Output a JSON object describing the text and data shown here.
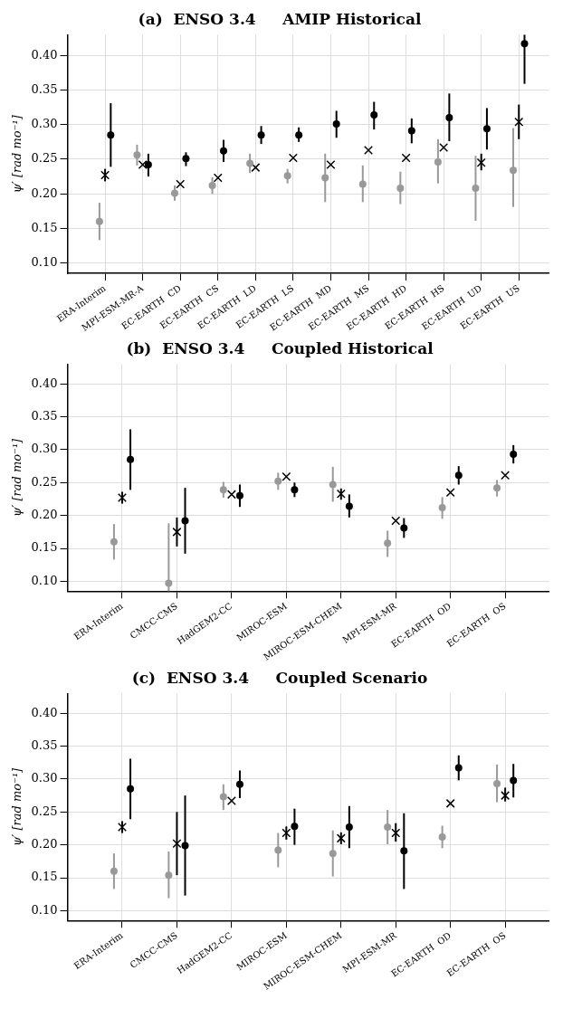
{
  "chart_data": [
    {
      "type": "scatter",
      "title": "(a)  ENSO 3.4     AMIP Historical",
      "ylabel": "ψ′ [rad mo⁻¹]",
      "categories": [
        "ERA-Interim",
        "MPI-ESM-MR-A",
        "EC-EARTH  CD",
        "EC-EARTH  CS",
        "EC-EARTH  LD",
        "EC-EARTH  LS",
        "EC-EARTH  MD",
        "EC-EARTH  MS",
        "EC-EARTH  HD",
        "EC-EARTH  HS",
        "EC-EARTH  UD",
        "EC-EARTH  US"
      ],
      "ylim": [
        0.085,
        0.43
      ],
      "yticks": [
        {
          "value": 0.1,
          "label": "0.10"
        },
        0.15,
        {
          "value": 0.2,
          "label": "0.20"
        },
        0.25,
        {
          "value": 0.3,
          "label": "0.30"
        },
        0.35,
        {
          "value": 0.4,
          "label": "0.40"
        }
      ],
      "grid": true,
      "legend": false,
      "series": [
        {
          "color": "#999999",
          "marker": "circle",
          "values": [
            0.16,
            0.256,
            0.201,
            0.212,
            0.244,
            0.226,
            0.223,
            0.214,
            0.208,
            0.246,
            0.208,
            0.234
          ],
          "errors": [
            [
              0.133,
              0.187
            ],
            [
              0.241,
              0.271
            ],
            [
              0.19,
              0.212
            ],
            [
              0.2,
              0.224
            ],
            [
              0.23,
              0.258
            ],
            [
              0.215,
              0.236
            ],
            [
              0.188,
              0.258
            ],
            [
              0.188,
              0.241
            ],
            [
              0.185,
              0.232
            ],
            [
              0.215,
              0.279
            ],
            [
              0.161,
              0.255
            ],
            [
              0.181,
              0.295
            ]
          ]
        },
        {
          "color": "#000000",
          "marker": "cross",
          "values": [
            0.227,
            0.242,
            0.214,
            0.223,
            0.238,
            0.252,
            0.242,
            0.263,
            0.252,
            0.267,
            0.245,
            0.304
          ],
          "errors": [
            [
              0.218,
              0.236
            ],
            null,
            null,
            null,
            null,
            null,
            null,
            null,
            null,
            null,
            [
              0.234,
              0.258
            ],
            [
              0.279,
              0.329
            ]
          ]
        },
        {
          "color": "#000000",
          "marker": "circle",
          "values": [
            0.285,
            0.242,
            0.251,
            0.262,
            0.285,
            0.285,
            0.301,
            0.314,
            0.291,
            0.31,
            0.294,
            0.417
          ],
          "errors": [
            [
              0.239,
              0.331
            ],
            [
              0.225,
              0.258
            ],
            [
              0.24,
              0.26
            ],
            [
              0.246,
              0.278
            ],
            [
              0.272,
              0.298
            ],
            [
              0.275,
              0.296
            ],
            [
              0.281,
              0.32
            ],
            [
              0.293,
              0.333
            ],
            [
              0.273,
              0.309
            ],
            [
              0.276,
              0.345
            ],
            [
              0.264,
              0.324
            ],
            [
              0.359,
              0.43
            ]
          ]
        }
      ]
    },
    {
      "type": "scatter",
      "title": "(b)  ENSO 3.4     Coupled Historical",
      "ylabel": "ψ′ [rad mo⁻¹]",
      "categories": [
        "ERA-Interim",
        "CMCC-CMS",
        "HadGEM2-CC",
        "MIROC-ESM",
        "MIROC-ESM-CHEM",
        "MPI-ESM-MR",
        "EC-EARTH  OD",
        "EC-EARTH  OS"
      ],
      "ylim": [
        0.085,
        0.43
      ],
      "yticks": [
        {
          "value": 0.1,
          "label": "0.10"
        },
        0.15,
        {
          "value": 0.2,
          "label": "0.20"
        },
        0.25,
        {
          "value": 0.3,
          "label": "0.30"
        },
        0.35,
        {
          "value": 0.4,
          "label": "0.40"
        }
      ],
      "grid": true,
      "legend": false,
      "series": [
        {
          "color": "#999999",
          "marker": "circle",
          "values": [
            0.16,
            0.097,
            0.239,
            0.252,
            0.247,
            0.158,
            0.212,
            0.242
          ],
          "errors": [
            [
              0.133,
              0.187
            ],
            [
              0.085,
              0.188
            ],
            [
              0.227,
              0.251
            ],
            [
              0.239,
              0.265
            ],
            [
              0.221,
              0.274
            ],
            [
              0.137,
              0.177
            ],
            [
              0.195,
              0.228
            ],
            [
              0.229,
              0.254
            ]
          ]
        },
        {
          "color": "#000000",
          "marker": "cross",
          "values": [
            0.227,
            0.175,
            0.232,
            0.259,
            0.233,
            0.192,
            0.235,
            0.261
          ],
          "errors": [
            [
              0.218,
              0.236
            ],
            [
              0.153,
              0.197
            ],
            null,
            null,
            [
              0.224,
              0.241
            ],
            null,
            null,
            null
          ]
        },
        {
          "color": "#000000",
          "marker": "circle",
          "values": [
            0.285,
            0.192,
            0.23,
            0.239,
            0.214,
            0.181,
            0.261,
            0.293
          ],
          "errors": [
            [
              0.239,
              0.331
            ],
            [
              0.142,
              0.242
            ],
            [
              0.213,
              0.247
            ],
            [
              0.228,
              0.25
            ],
            [
              0.197,
              0.232
            ],
            [
              0.166,
              0.196
            ],
            [
              0.247,
              0.275
            ],
            [
              0.279,
              0.307
            ]
          ]
        }
      ]
    },
    {
      "type": "scatter",
      "title": "(c)  ENSO 3.4     Coupled Scenario",
      "ylabel": "ψ′ [rad mo⁻¹]",
      "categories": [
        "ERA-Interim",
        "CMCC-CMS",
        "HadGEM2-CC",
        "MIROC-ESM",
        "MIROC-ESM-CHEM",
        "MPI-ESM-MR",
        "EC-EARTH  OD",
        "EC-EARTH  OS"
      ],
      "ylim": [
        0.085,
        0.43
      ],
      "yticks": [
        {
          "value": 0.1,
          "label": "0.10"
        },
        0.15,
        {
          "value": 0.2,
          "label": "0.20"
        },
        0.25,
        {
          "value": 0.3,
          "label": "0.30"
        },
        0.35,
        {
          "value": 0.4,
          "label": "0.40"
        }
      ],
      "grid": true,
      "legend": false,
      "series": [
        {
          "color": "#999999",
          "marker": "circle",
          "values": [
            0.16,
            0.154,
            0.273,
            0.192,
            0.187,
            0.227,
            0.212,
            0.293
          ],
          "errors": [
            [
              0.133,
              0.187
            ],
            [
              0.119,
              0.19
            ],
            [
              0.253,
              0.292
            ],
            [
              0.166,
              0.218
            ],
            [
              0.152,
              0.222
            ],
            [
              0.201,
              0.253
            ],
            [
              0.195,
              0.229
            ],
            [
              0.265,
              0.322
            ]
          ]
        },
        {
          "color": "#000000",
          "marker": "cross",
          "values": [
            0.227,
            0.202,
            0.267,
            0.218,
            0.21,
            0.218,
            0.263,
            0.275
          ],
          "errors": [
            [
              0.218,
              0.236
            ],
            [
              0.154,
              0.25
            ],
            null,
            [
              0.208,
              0.228
            ],
            [
              0.201,
              0.219
            ],
            [
              0.205,
              0.233
            ],
            null,
            [
              0.266,
              0.287
            ]
          ]
        },
        {
          "color": "#000000",
          "marker": "circle",
          "values": [
            0.285,
            0.199,
            0.292,
            0.228,
            0.227,
            0.191,
            0.317,
            0.298
          ],
          "errors": [
            [
              0.239,
              0.331
            ],
            [
              0.123,
              0.275
            ],
            [
              0.271,
              0.313
            ],
            [
              0.2,
              0.255
            ],
            [
              0.195,
              0.259
            ],
            [
              0.133,
              0.248
            ],
            [
              0.298,
              0.336
            ],
            [
              0.272,
              0.323
            ]
          ]
        }
      ]
    }
  ]
}
